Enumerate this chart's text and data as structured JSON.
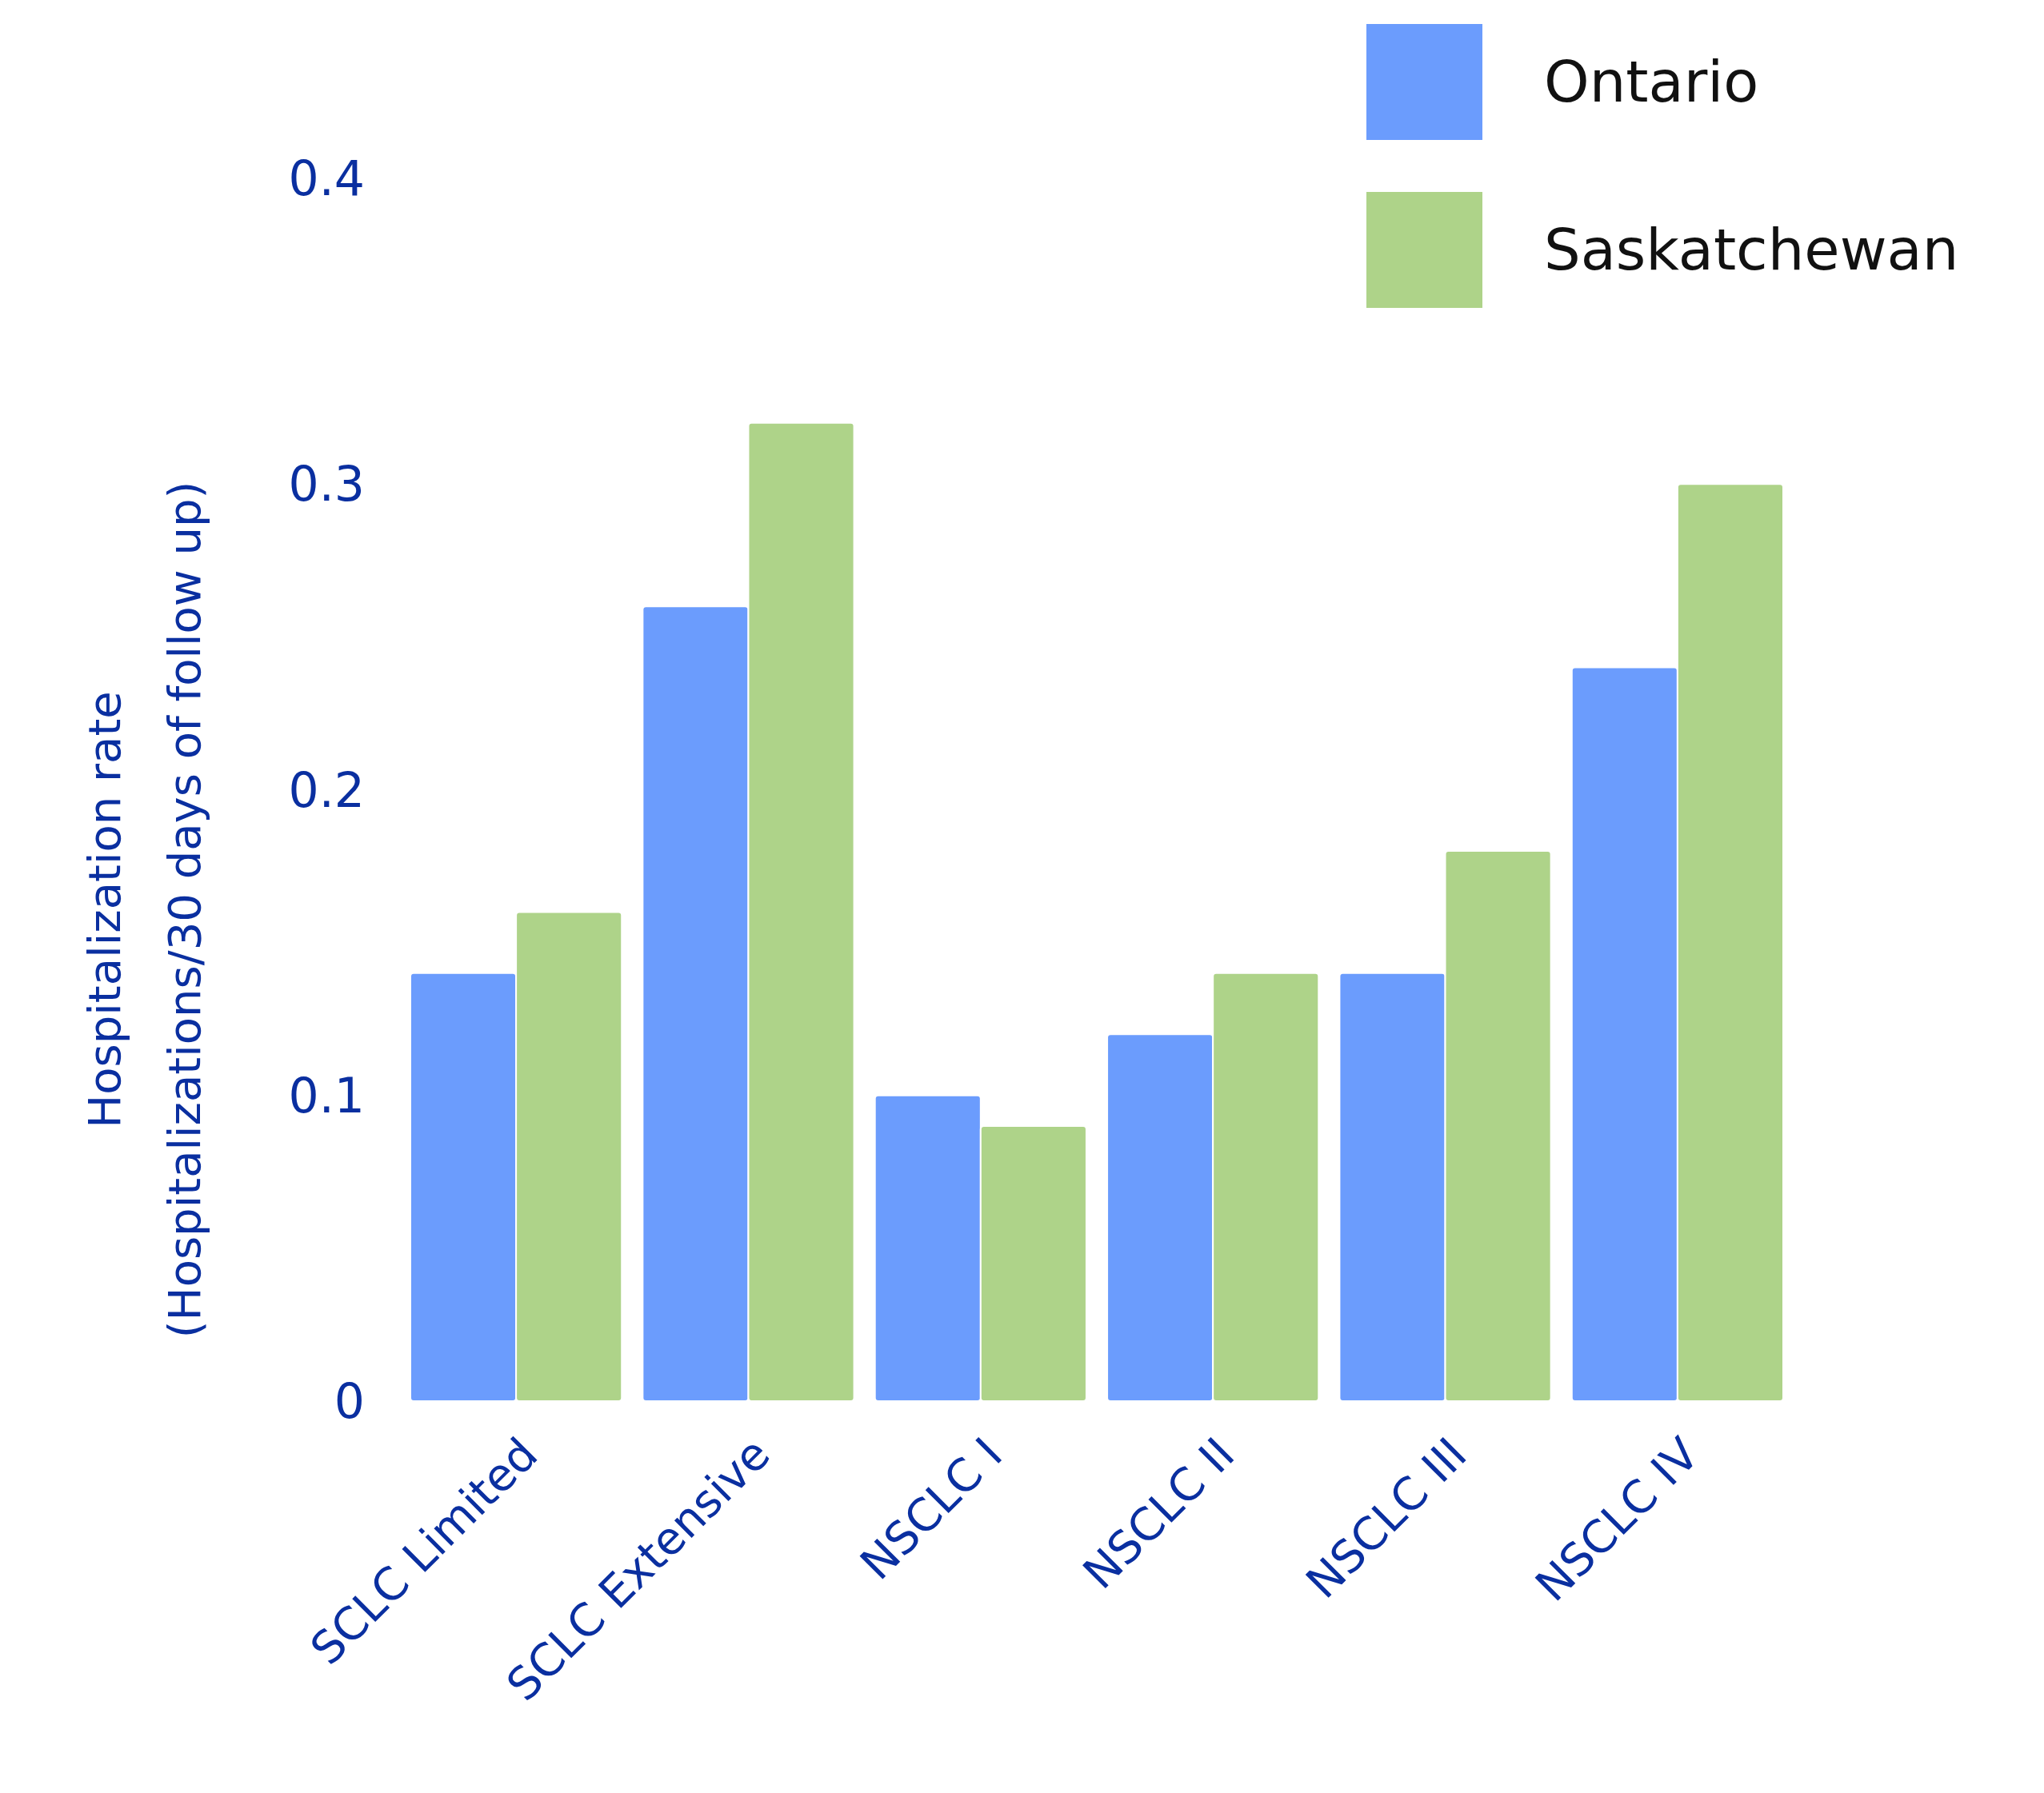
{
  "chart_data": {
    "type": "bar",
    "ylabel": "Hospitalization rate\n(Hospitalizations/30 days of follow up)",
    "categories": [
      "SCLC Limited",
      "SCLC Extensive",
      "NSCLC I",
      "NSCLC II",
      "NSCLC III",
      "NSCLC IV"
    ],
    "series": [
      {
        "name": "Ontario",
        "color": "#6b9cfd",
        "values": [
          0.14,
          0.26,
          0.1,
          0.12,
          0.14,
          0.24
        ]
      },
      {
        "name": "Saskatchewan",
        "color": "#aed389",
        "values": [
          0.16,
          0.32,
          0.09,
          0.14,
          0.18,
          0.3
        ]
      }
    ],
    "ylim": [
      0,
      0.4
    ],
    "yticks": [
      {
        "value": 0,
        "label": "0"
      },
      0.1,
      0.2,
      0.3,
      0.4
    ],
    "grid": false,
    "legend": "top right"
  }
}
